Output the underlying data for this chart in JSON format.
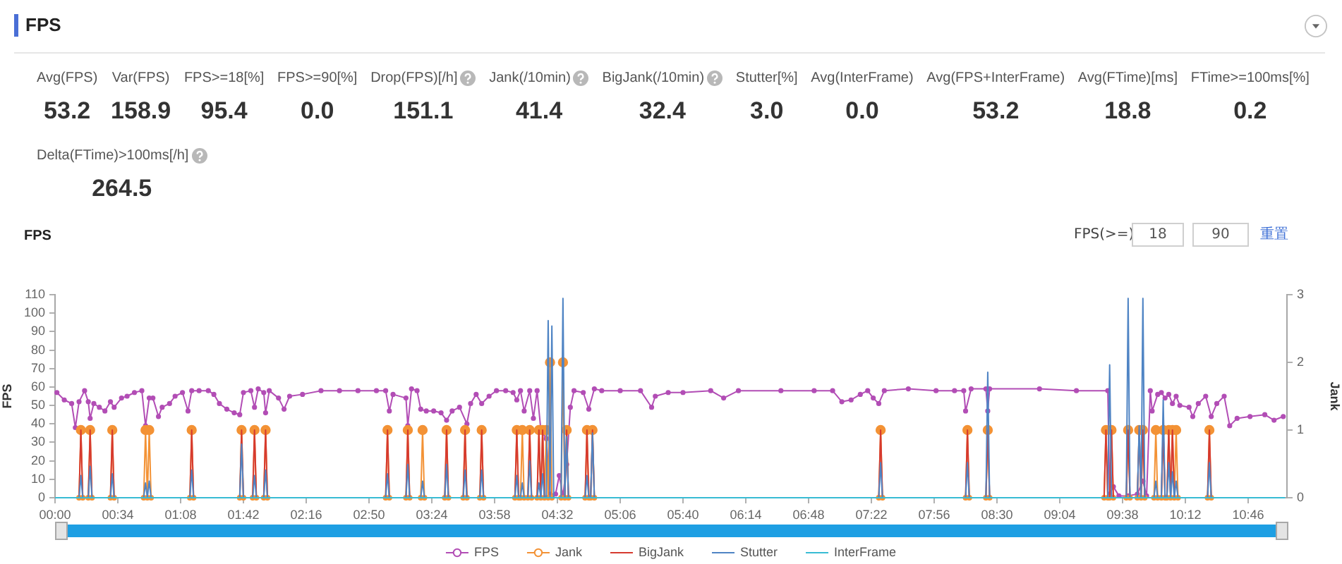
{
  "chart_data": [
    {
      "type": "other",
      "title": "FPS",
      "categories": [
        "Avg(FPS)",
        "Var(FPS)",
        "FPS>=18[%]",
        "FPS>=90[%]",
        "Drop(FPS)[/h]",
        "Jank(/10min)",
        "BigJank(/10min)",
        "Stutter[%]",
        "Avg(InterFrame)",
        "Avg(FPS+InterFrame)",
        "Avg(FTime)[ms]",
        "FTime>=100ms[%]",
        "Delta(FTime)>100ms[/h]"
      ],
      "value_labels": [
        "53.2",
        "158.9",
        "95.4",
        "0.0",
        "151.1",
        "41.4",
        "32.4",
        "3.0",
        "0.0",
        "53.2",
        "18.8",
        "0.2",
        "264.5"
      ]
    },
    {
      "type": "line",
      "title": "FPS",
      "ylabel": "FPS",
      "y2label": "Jank",
      "xlim": [
        0,
        667
      ],
      "xticks": [
        {
          "value": 0,
          "label": "00:00"
        },
        {
          "value": 34,
          "label": "00:34"
        },
        {
          "value": 68,
          "label": "01:08"
        },
        {
          "value": 102,
          "label": "01:42"
        },
        {
          "value": 136,
          "label": "02:16"
        },
        {
          "value": 170,
          "label": "02:50"
        },
        {
          "value": 204,
          "label": "03:24"
        },
        {
          "value": 238,
          "label": "03:58"
        },
        {
          "value": 272,
          "label": "04:32"
        },
        {
          "value": 306,
          "label": "05:06"
        },
        {
          "value": 340,
          "label": "05:40"
        },
        {
          "value": 374,
          "label": "06:14"
        },
        {
          "value": 408,
          "label": "06:48"
        },
        {
          "value": 442,
          "label": "07:22"
        },
        {
          "value": 476,
          "label": "07:56"
        },
        {
          "value": 510,
          "label": "08:30"
        },
        {
          "value": 544,
          "label": "09:04"
        },
        {
          "value": 578,
          "label": "09:38"
        },
        {
          "value": 612,
          "label": "10:12"
        },
        {
          "value": 646,
          "label": "10:46"
        }
      ],
      "ylim": [
        0,
        110
      ],
      "yticks": [
        0,
        10,
        20,
        30,
        40,
        50,
        60,
        70,
        80,
        90,
        100,
        110
      ],
      "y2lim": [
        0,
        3
      ],
      "y2ticks": [
        0,
        1,
        2,
        3
      ],
      "legend": "bottom",
      "annotations": [
        "FPS(>=)",
        "18",
        "90",
        "重置"
      ],
      "series": [
        {
          "name": "FPS",
          "color": "#b24db5",
          "marker": "circle",
          "x": [
            1,
            5,
            9,
            11,
            13,
            16,
            18,
            19,
            21,
            24,
            27,
            30,
            32,
            36,
            39,
            43,
            47,
            49,
            51,
            53,
            56,
            58,
            62,
            65,
            69,
            72,
            74,
            78,
            83,
            86,
            89,
            93,
            97,
            100,
            102,
            106,
            108,
            110,
            113,
            114,
            116,
            121,
            124,
            127,
            134,
            144,
            154,
            164,
            174,
            179,
            181,
            183,
            190,
            191,
            193,
            196,
            198,
            201,
            205,
            209,
            212,
            215,
            219,
            223,
            225,
            228,
            231,
            235,
            239,
            244,
            248,
            250,
            252,
            254,
            257,
            259,
            261,
            263,
            266,
            268,
            271,
            273,
            275,
            277,
            279,
            281,
            286,
            289,
            292,
            296,
            306,
            317,
            323,
            325,
            332,
            340,
            355,
            362,
            370,
            393,
            411,
            421,
            426,
            431,
            436,
            440,
            443,
            446,
            449,
            462,
            477,
            487,
            492,
            493,
            496,
            504,
            505,
            506,
            533,
            553,
            570,
            571,
            573,
            576,
            581,
            586,
            589,
            591,
            593,
            594,
            597,
            599,
            601,
            603,
            605,
            607,
            609,
            614,
            616,
            619,
            623,
            626,
            629,
            633,
            636,
            640,
            647,
            655,
            660,
            665
          ],
          "values": [
            57,
            53,
            51,
            38,
            52,
            58,
            52,
            43,
            51,
            49,
            47,
            52,
            49,
            54,
            55,
            57,
            58,
            39,
            54,
            54,
            44,
            49,
            51,
            55,
            57,
            47,
            58,
            58,
            58,
            56,
            51,
            48,
            46,
            45,
            57,
            58,
            49,
            59,
            57,
            46,
            58,
            54,
            48,
            55,
            56,
            58,
            58,
            58,
            58,
            58,
            47,
            56,
            54,
            39,
            59,
            58,
            48,
            47,
            47,
            46,
            42,
            47,
            49,
            40,
            51,
            56,
            51,
            55,
            58,
            58,
            57,
            53,
            58,
            47,
            58,
            43,
            58,
            37,
            32,
            2,
            2,
            12,
            1,
            18,
            49,
            58,
            57,
            48,
            59,
            58,
            58,
            58,
            49,
            55,
            57,
            57,
            58,
            54,
            58,
            58,
            58,
            58,
            52,
            53,
            56,
            58,
            54,
            51,
            58,
            59,
            58,
            58,
            58,
            47,
            59,
            59,
            47,
            59,
            59,
            58,
            58,
            2,
            6,
            1,
            1,
            2,
            9,
            1,
            58,
            47,
            56,
            57,
            54,
            56,
            51,
            55,
            50,
            49,
            44,
            51,
            55,
            44,
            51,
            55,
            39,
            43,
            44,
            45,
            42,
            44
          ]
        },
        {
          "name": "Jank",
          "color": "#f39235",
          "marker": "circle",
          "axis": "y2",
          "x": [
            13,
            14,
            15,
            18,
            19,
            20,
            30,
            31,
            32,
            48,
            49,
            50,
            51,
            52,
            73,
            74,
            75,
            100,
            101,
            102,
            107,
            108,
            109,
            113,
            114,
            115,
            179,
            180,
            181,
            190,
            191,
            192,
            198,
            199,
            200,
            211,
            212,
            213,
            221,
            222,
            223,
            230,
            231,
            232,
            249,
            250,
            251,
            252,
            253,
            254,
            256,
            257,
            258,
            261,
            262,
            263,
            264,
            265,
            266,
            267,
            268,
            269,
            274,
            275,
            276,
            277,
            278,
            287,
            288,
            289,
            290,
            291,
            292,
            446,
            447,
            448,
            493,
            494,
            495,
            504,
            505,
            506,
            568,
            569,
            570,
            571,
            572,
            573,
            580,
            581,
            582,
            586,
            587,
            588,
            589,
            590,
            595,
            596,
            597,
            599,
            600,
            601,
            602,
            603,
            604,
            605,
            606,
            607,
            608,
            624,
            625,
            626
          ],
          "values": [
            0,
            1,
            0,
            0,
            1,
            0,
            0,
            1,
            0,
            0,
            1,
            0,
            1,
            0,
            0,
            1,
            0,
            0,
            1,
            0,
            0,
            1,
            0,
            0,
            1,
            0,
            0,
            1,
            0,
            0,
            1,
            0,
            0,
            1,
            0,
            0,
            1,
            0,
            0,
            1,
            0,
            0,
            1,
            0,
            0,
            1,
            0,
            0,
            1,
            0,
            0,
            1,
            0,
            0,
            1,
            0,
            1,
            0,
            1,
            0,
            2,
            0,
            0,
            2,
            0,
            1,
            0,
            0,
            1,
            0,
            0,
            1,
            0,
            0,
            1,
            0,
            0,
            1,
            0,
            0,
            1,
            0,
            0,
            1,
            0,
            0,
            1,
            0,
            0,
            1,
            0,
            0,
            1,
            0,
            1,
            0,
            0,
            1,
            0,
            0,
            1,
            0,
            0,
            1,
            0,
            1,
            0,
            1,
            0,
            0,
            1,
            0
          ]
        },
        {
          "name": "BigJank",
          "color": "#d63a2f",
          "marker": "none",
          "axis": "y2",
          "x": [
            13,
            14,
            15,
            18,
            19,
            20,
            30,
            31,
            32,
            73,
            74,
            75,
            100,
            101,
            102,
            107,
            108,
            109,
            113,
            114,
            115,
            179,
            180,
            181,
            190,
            191,
            192,
            211,
            212,
            213,
            221,
            222,
            223,
            230,
            231,
            232,
            249,
            250,
            251,
            256,
            257,
            258,
            261,
            262,
            263,
            264,
            265,
            276,
            277,
            278,
            287,
            288,
            289,
            290,
            291,
            292,
            446,
            447,
            448,
            493,
            494,
            495,
            504,
            505,
            506,
            568,
            569,
            570,
            571,
            572,
            573,
            580,
            581,
            582,
            586,
            587,
            588,
            589,
            590,
            599,
            600,
            601,
            602,
            603,
            604,
            605,
            606,
            624,
            625,
            626
          ],
          "values": [
            0,
            1,
            0,
            0,
            1,
            0,
            0,
            1,
            0,
            0,
            1,
            0,
            0,
            1,
            0,
            0,
            1,
            0,
            0,
            1,
            0,
            0,
            1,
            0,
            0,
            1,
            0,
            0,
            1,
            0,
            0,
            1,
            0,
            0,
            1,
            0,
            0,
            1,
            0,
            0,
            1,
            0,
            0,
            1,
            0,
            1,
            0,
            0,
            1,
            0,
            0,
            1,
            0,
            0,
            1,
            0,
            0,
            1,
            0,
            0,
            1,
            0,
            0,
            1,
            0,
            0,
            1,
            0,
            0,
            1,
            0,
            0,
            1,
            0,
            0,
            1,
            0,
            1,
            0,
            0,
            1,
            0,
            0,
            1,
            0,
            1,
            0,
            0,
            1,
            0
          ]
        },
        {
          "name": "Stutter",
          "color": "#4f84c4",
          "marker": "none",
          "x": [
            13,
            14,
            15,
            18,
            19,
            20,
            30,
            31,
            32,
            48,
            49,
            50,
            51,
            52,
            73,
            74,
            75,
            100,
            101,
            102,
            107,
            108,
            109,
            113,
            114,
            115,
            179,
            180,
            181,
            190,
            191,
            192,
            198,
            199,
            200,
            211,
            212,
            213,
            221,
            222,
            223,
            230,
            231,
            232,
            249,
            250,
            251,
            252,
            253,
            254,
            256,
            257,
            258,
            261,
            262,
            263,
            264,
            265,
            266,
            267,
            268,
            269,
            270,
            274,
            275,
            276,
            277,
            278,
            287,
            288,
            289,
            290,
            291,
            292,
            446,
            447,
            448,
            493,
            494,
            495,
            504,
            505,
            506,
            570,
            571,
            572,
            580,
            581,
            582,
            586,
            587,
            588,
            589,
            590,
            595,
            596,
            597,
            599,
            600,
            601,
            602,
            603,
            604,
            605,
            606,
            607,
            608,
            624,
            625,
            626
          ],
          "values": [
            0,
            12,
            0,
            0,
            17,
            0,
            0,
            13,
            0,
            0,
            8,
            0,
            9,
            0,
            0,
            15,
            0,
            0,
            29,
            0,
            0,
            12,
            0,
            0,
            15,
            0,
            0,
            13,
            0,
            0,
            18,
            0,
            0,
            9,
            0,
            0,
            18,
            0,
            0,
            15,
            0,
            0,
            15,
            0,
            0,
            12,
            0,
            0,
            8,
            0,
            0,
            20,
            0,
            0,
            8,
            0,
            13,
            0,
            0,
            96,
            0,
            93,
            0,
            0,
            108,
            0,
            33,
            0,
            0,
            12,
            0,
            0,
            35,
            0,
            0,
            19,
            0,
            0,
            19,
            0,
            0,
            68,
            0,
            0,
            72,
            0,
            0,
            108,
            0,
            0,
            39,
            0,
            108,
            0,
            0,
            9,
            0,
            0,
            53,
            0,
            0,
            19,
            0,
            14,
            0,
            9,
            0,
            0,
            19,
            0
          ]
        },
        {
          "name": "InterFrame",
          "color": "#38bcd4",
          "marker": "none",
          "x": [
            0,
            666
          ],
          "values": [
            0,
            0
          ]
        }
      ]
    }
  ]
}
